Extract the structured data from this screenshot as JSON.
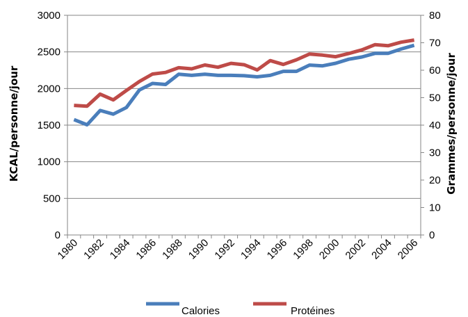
{
  "chart_data": {
    "type": "line",
    "x": [
      "1980",
      "1981",
      "1982",
      "1983",
      "1984",
      "1985",
      "1986",
      "1987",
      "1988",
      "1989",
      "1990",
      "1991",
      "1992",
      "1993",
      "1994",
      "1995",
      "1996",
      "1997",
      "1998",
      "1999",
      "2000",
      "2001",
      "2002",
      "2003",
      "2004",
      "2005",
      "2006"
    ],
    "x_tick_labels": [
      "1980",
      "1982",
      "1984",
      "1986",
      "1988",
      "1990",
      "1992",
      "1994",
      "1996",
      "1998",
      "2000",
      "2002",
      "2004",
      "2006"
    ],
    "ylabel_left": "KCAL/personne/jour",
    "ylabel_right": "Grammes/personne/jour",
    "ylim_left": [
      0,
      3000
    ],
    "ylim_right": [
      0,
      80
    ],
    "yticks_left": [
      "0",
      "500",
      "1000",
      "1500",
      "2000",
      "2500",
      "3000"
    ],
    "yticks_right": [
      "0",
      "10",
      "20",
      "30",
      "40",
      "50",
      "60",
      "70",
      "80"
    ],
    "grid": "horizontal",
    "legend_position": "bottom",
    "series": [
      {
        "name": "Calories",
        "axis": "left",
        "color": "#4a7ebb",
        "values": [
          1575,
          1505,
          1700,
          1650,
          1740,
          1980,
          2070,
          2055,
          2195,
          2180,
          2195,
          2180,
          2180,
          2175,
          2160,
          2180,
          2235,
          2235,
          2320,
          2310,
          2345,
          2400,
          2430,
          2480,
          2480,
          2540,
          2590
        ]
      },
      {
        "name": "Protéines",
        "axis": "right",
        "color": "#be4b48",
        "values": [
          47.2,
          46.9,
          51.3,
          49.2,
          52.6,
          55.9,
          58.6,
          59.2,
          60.9,
          60.5,
          61.9,
          61.1,
          62.5,
          62.0,
          60.1,
          63.5,
          62.1,
          63.8,
          65.9,
          65.5,
          64.9,
          66.1,
          67.4,
          69.3,
          68.9,
          70.2,
          71.0
        ]
      }
    ]
  }
}
